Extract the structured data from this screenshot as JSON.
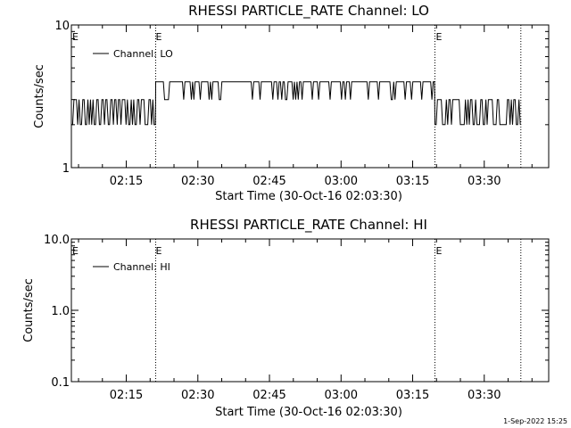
{
  "chart_data": [
    {
      "type": "line",
      "title": "RHESSI PARTICLE_RATE Channel: LO",
      "xlabel": "Start Time (30-Oct-16 02:03:30)",
      "ylabel": "Counts/sec",
      "yscale": "log",
      "ylim": [
        1,
        10
      ],
      "ytick_labels": [
        "1",
        "10"
      ],
      "xtick_labels": [
        "02:15",
        "02:30",
        "02:45",
        "03:00",
        "03:15",
        "03:30"
      ],
      "xlim": [
        "02:03:30",
        "03:43:30"
      ],
      "legend": {
        "entries": [
          "Channel: LO"
        ],
        "placement": "top-left"
      },
      "markers": [
        {
          "time": "02:21:10",
          "style": "dotted",
          "label": "E"
        },
        {
          "time": "03:19:40",
          "style": "dotted",
          "label": "E"
        },
        {
          "time": "03:37:40",
          "style": "dotted",
          "label": ""
        }
      ],
      "series": [
        {
          "name": "Channel: LO",
          "segments": [
            {
              "start": "02:03:30",
              "end": "02:21:10",
              "low": 2,
              "high": 3
            },
            {
              "start": "02:21:10",
              "end": "03:19:40",
              "low": 3,
              "high": 4
            },
            {
              "start": "03:19:40",
              "end": "03:37:40",
              "low": 2,
              "high": 3
            }
          ]
        }
      ]
    },
    {
      "type": "line",
      "title": "RHESSI PARTICLE_RATE Channel: HI",
      "xlabel": "Start Time (30-Oct-16 02:03:30)",
      "ylabel": "Counts/sec",
      "yscale": "log",
      "ylim": [
        0.1,
        10
      ],
      "ytick_labels": [
        "0.1",
        "1.0",
        "10.0"
      ],
      "xtick_labels": [
        "02:15",
        "02:30",
        "02:45",
        "03:00",
        "03:15",
        "03:30"
      ],
      "xlim": [
        "02:03:30",
        "03:43:30"
      ],
      "legend": {
        "entries": [
          "Channel: HI"
        ],
        "placement": "top-left"
      },
      "markers": [
        {
          "time": "02:21:10",
          "style": "dotted",
          "label": "E"
        },
        {
          "time": "03:19:40",
          "style": "dotted",
          "label": "E"
        },
        {
          "time": "03:37:40",
          "style": "dotted",
          "label": ""
        }
      ],
      "series": [
        {
          "name": "Channel: HI",
          "segments": []
        }
      ]
    }
  ],
  "footer": {
    "timestamp": "1-Sep-2022 15:25"
  }
}
